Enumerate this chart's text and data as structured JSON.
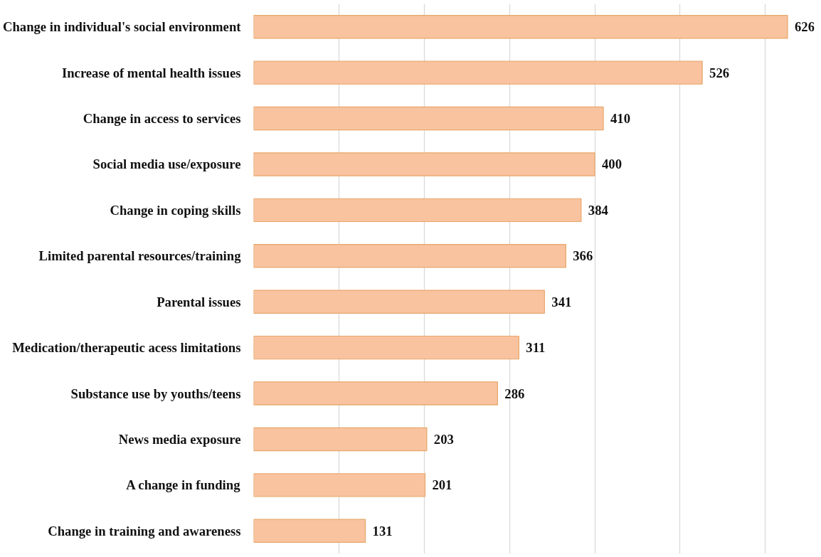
{
  "chart_data": {
    "type": "bar",
    "orientation": "horizontal",
    "categories": [
      "Change in individual's social environment",
      "Increase of mental health issues",
      "Change in access to services",
      "Social media use/exposure",
      "Change in coping skills",
      "Limited parental resources/training",
      "Parental issues",
      "Medication/therapeutic acess limitations",
      "Substance use by youths/teens",
      "News media exposure",
      "A change in funding",
      "Change in training and awareness"
    ],
    "values": [
      626,
      526,
      410,
      400,
      384,
      366,
      341,
      311,
      286,
      203,
      201,
      131
    ],
    "color": "#f9c3a0",
    "grid": "x",
    "data_labels": true
  }
}
